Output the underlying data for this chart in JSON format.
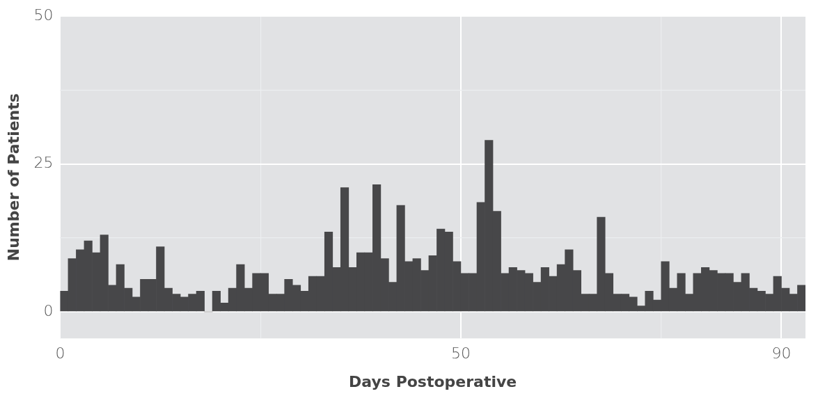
{
  "chart_data": {
    "type": "histogram",
    "xlabel": "Days Postoperative",
    "ylabel": "Number of Patients",
    "color": "#474749",
    "bins": [
      0,
      1,
      2,
      3,
      4,
      5,
      6,
      7,
      8,
      9,
      10,
      11,
      12,
      13,
      14,
      15,
      16,
      17,
      18,
      19,
      20,
      21,
      22,
      23,
      24,
      25,
      26,
      27,
      28,
      29,
      30,
      31,
      32,
      33,
      34,
      35,
      36,
      37,
      38,
      39,
      40,
      41,
      42,
      43,
      44,
      45,
      46,
      47,
      48,
      49,
      50,
      51,
      52,
      53,
      54,
      55,
      56,
      57,
      58,
      59,
      60,
      61,
      62,
      63,
      64,
      65,
      66,
      67,
      68,
      69,
      70,
      71,
      72,
      73,
      74,
      75,
      76,
      77,
      78,
      79,
      80,
      81,
      82,
      83,
      84,
      85,
      86,
      87,
      88,
      89,
      90,
      91,
      92,
      93
    ],
    "values": [
      3.5,
      9,
      10.5,
      12,
      10,
      13,
      4.5,
      8,
      4,
      2.5,
      5.5,
      5.5,
      11,
      4,
      3,
      2.5,
      3,
      3.5,
      0,
      3.5,
      1.5,
      4,
      8,
      4,
      6.5,
      6.5,
      3,
      3,
      5.5,
      4.5,
      3.5,
      6,
      6,
      13.5,
      7.5,
      21,
      7.5,
      10,
      10,
      21.5,
      9,
      5,
      18,
      8.5,
      9,
      7,
      9.5,
      14,
      13.5,
      8.5,
      6.5,
      6.5,
      18.5,
      29,
      17,
      6.5,
      7.5,
      7,
      6.5,
      5,
      7.5,
      6,
      8,
      10.5,
      7,
      3,
      3,
      16,
      6.5,
      3,
      3,
      2.5,
      1,
      3.5,
      2,
      8.5,
      4,
      6.5,
      3,
      6.5,
      7.5,
      7,
      6.5,
      6.5,
      5,
      6.5,
      4,
      3.5,
      3,
      6,
      4,
      3,
      4.5
    ],
    "xlim": [
      0,
      93
    ],
    "xticks": [
      0,
      {
        "value": 25,
        "label": null
      },
      50,
      {
        "value": 75,
        "label": null
      },
      90
    ],
    "ylim": [
      -4.5,
      50
    ],
    "yticks": [
      0,
      {
        "value": 12.5,
        "label": null
      },
      25,
      {
        "value": 37.5,
        "label": null
      },
      50
    ],
    "grid": true,
    "legend": false
  }
}
